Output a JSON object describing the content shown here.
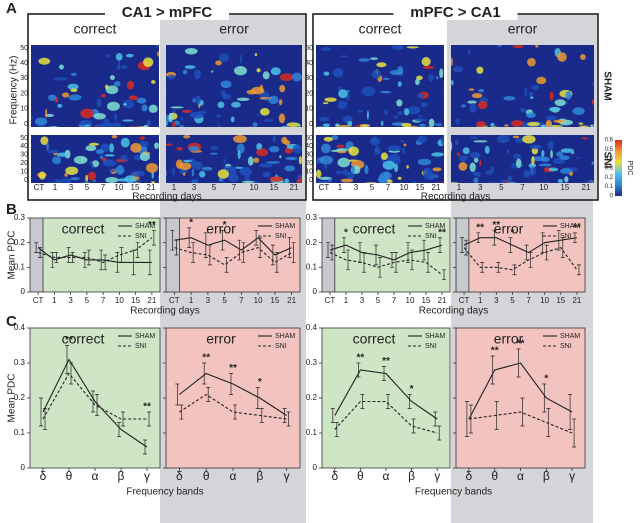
{
  "panels": {
    "a": "A",
    "b": "B",
    "c": "C"
  },
  "heatmaps": {
    "groups": [
      "CA1 > mPFC",
      "mPFC > CA1"
    ],
    "conditions": [
      "correct",
      "error"
    ],
    "rows": [
      "SHAM",
      "SNI"
    ],
    "ylabel": "Frequency (Hz)",
    "yticks": [
      0,
      10,
      20,
      30,
      40,
      50
    ],
    "xlabel": "Recording days",
    "xticks": [
      "CT",
      "1",
      "3",
      "5",
      "7",
      "10",
      "15",
      "21"
    ],
    "colorbar": {
      "label": "PDC",
      "ticks": [
        0,
        0.1,
        0.2,
        0.3,
        0.4,
        0.5,
        0.6
      ]
    }
  },
  "chart_data": [
    {
      "type": "line",
      "title": "correct",
      "ylabel": "Mean PDC",
      "xlabel": "Recording days",
      "background": "#cfe6c6",
      "categories": [
        "CT",
        "1",
        "3",
        "5",
        "7",
        "10",
        "15",
        "21"
      ],
      "ylim": [
        0,
        0.3
      ],
      "yticks": [
        0,
        0.1,
        0.2,
        0.3
      ],
      "series": [
        {
          "name": "SHAM",
          "color": "#222222",
          "dashed": false,
          "values": [
            0.18,
            0.13,
            0.15,
            0.13,
            0.13,
            0.12,
            0.12,
            0.12
          ],
          "errors": [
            0.02,
            0.03,
            0.03,
            0.03,
            0.04,
            0.04,
            0.05,
            0.05
          ]
        },
        {
          "name": "SNI",
          "color": "#222222",
          "dashed": true,
          "values": [
            0.16,
            0.14,
            0.14,
            0.14,
            0.12,
            0.15,
            0.17,
            0.22
          ],
          "errors": [
            0.02,
            0.02,
            0.02,
            0.03,
            0.03,
            0.03,
            0.03,
            0.03
          ]
        }
      ],
      "annotations": [
        {
          "x": "21",
          "text": "**"
        }
      ]
    },
    {
      "type": "line",
      "title": "error",
      "background": "#f2c3bf",
      "categories": [
        "CT",
        "1",
        "3",
        "5",
        "7",
        "10",
        "15",
        "21"
      ],
      "ylim": [
        0,
        0.3
      ],
      "yticks": [
        0,
        0.1,
        0.2,
        0.3
      ],
      "series": [
        {
          "name": "SHAM",
          "color": "#222222",
          "dashed": false,
          "values": [
            0.21,
            0.22,
            0.19,
            0.21,
            0.17,
            0.22,
            0.15,
            0.18
          ],
          "errors": [
            0.04,
            0.04,
            0.05,
            0.04,
            0.04,
            0.03,
            0.04,
            0.04
          ]
        },
        {
          "name": "SNI",
          "color": "#222222",
          "dashed": true,
          "values": [
            0.18,
            0.16,
            0.15,
            0.11,
            0.16,
            0.18,
            0.12,
            0.16
          ],
          "errors": [
            0.03,
            0.04,
            0.04,
            0.03,
            0.04,
            0.04,
            0.04,
            0.04
          ]
        }
      ],
      "annotations": [
        {
          "x": "1",
          "text": "*"
        },
        {
          "x": "5",
          "text": "*"
        }
      ]
    },
    {
      "type": "line",
      "title": "correct",
      "xlabel": "Recording days",
      "background": "#cfe6c6",
      "categories": [
        "CT",
        "1",
        "3",
        "5",
        "7",
        "10",
        "15",
        "21"
      ],
      "ylim": [
        0,
        0.3
      ],
      "yticks": [
        0,
        0.1,
        0.2,
        0.3
      ],
      "series": [
        {
          "name": "SHAM",
          "color": "#222222",
          "dashed": false,
          "values": [
            0.17,
            0.19,
            0.16,
            0.15,
            0.13,
            0.16,
            0.17,
            0.19
          ],
          "errors": [
            0.03,
            0.03,
            0.04,
            0.04,
            0.03,
            0.04,
            0.04,
            0.03
          ]
        },
        {
          "name": "SNI",
          "color": "#222222",
          "dashed": true,
          "values": [
            0.16,
            0.13,
            0.12,
            0.1,
            0.12,
            0.13,
            0.12,
            0.07
          ],
          "errors": [
            0.03,
            0.04,
            0.04,
            0.04,
            0.04,
            0.04,
            0.04,
            0.02
          ]
        }
      ],
      "annotations": [
        {
          "x": "1",
          "text": "*"
        },
        {
          "x": "21",
          "text": "**"
        }
      ]
    },
    {
      "type": "line",
      "title": "error",
      "background": "#f2c3bf",
      "categories": [
        "CT",
        "1",
        "3",
        "5",
        "7",
        "10",
        "15",
        "21"
      ],
      "ylim": [
        0,
        0.3
      ],
      "yticks": [
        0,
        0.1,
        0.2,
        0.3
      ],
      "series": [
        {
          "name": "SHAM",
          "color": "#222222",
          "dashed": false,
          "values": [
            0.19,
            0.22,
            0.22,
            0.19,
            0.16,
            0.2,
            0.21,
            0.22
          ],
          "errors": [
            0.03,
            0.02,
            0.03,
            0.03,
            0.03,
            0.04,
            0.04,
            0.02
          ]
        },
        {
          "name": "SNI",
          "color": "#222222",
          "dashed": true,
          "values": [
            0.18,
            0.1,
            0.1,
            0.09,
            0.13,
            0.16,
            0.18,
            0.09
          ],
          "errors": [
            0.03,
            0.02,
            0.02,
            0.02,
            0.03,
            0.03,
            0.04,
            0.02
          ]
        }
      ],
      "annotations": [
        {
          "x": "1",
          "text": "**"
        },
        {
          "x": "3",
          "text": "**"
        },
        {
          "x": "5",
          "text": "*"
        },
        {
          "x": "21",
          "text": "**"
        }
      ]
    },
    {
      "type": "line",
      "title": "correct",
      "ylabel": "Mean PDC",
      "xlabel": "Frequency bands",
      "background": "#cfe6c6",
      "categories": [
        "δ",
        "θ",
        "α",
        "β",
        "γ"
      ],
      "ylim": [
        0,
        0.4
      ],
      "yticks": [
        0,
        0.1,
        0.2,
        0.3,
        0.4
      ],
      "series": [
        {
          "name": "SHAM",
          "color": "#222222",
          "dashed": false,
          "values": [
            0.16,
            0.31,
            0.19,
            0.11,
            0.06
          ],
          "errors": [
            0.04,
            0.04,
            0.03,
            0.02,
            0.02
          ]
        },
        {
          "name": "SNI",
          "color": "#222222",
          "dashed": true,
          "values": [
            0.14,
            0.27,
            0.18,
            0.14,
            0.14
          ],
          "errors": [
            0.03,
            0.03,
            0.03,
            0.02,
            0.02
          ]
        }
      ],
      "annotations": [
        {
          "x": "θ",
          "text": "**"
        },
        {
          "x": "γ",
          "text": "**"
        }
      ]
    },
    {
      "type": "line",
      "title": "error",
      "background": "#f2c3bf",
      "categories": [
        "δ",
        "θ",
        "α",
        "β",
        "γ"
      ],
      "ylim": [
        0,
        0.4
      ],
      "yticks": [
        0,
        0.1,
        0.2,
        0.3,
        0.4
      ],
      "series": [
        {
          "name": "SHAM",
          "color": "#222222",
          "dashed": false,
          "values": [
            0.21,
            0.27,
            0.24,
            0.2,
            0.15
          ],
          "errors": [
            0.03,
            0.03,
            0.03,
            0.03,
            0.02
          ]
        },
        {
          "name": "SNI",
          "color": "#222222",
          "dashed": true,
          "values": [
            0.16,
            0.21,
            0.16,
            0.15,
            0.14
          ],
          "errors": [
            0.02,
            0.02,
            0.02,
            0.02,
            0.02
          ]
        }
      ],
      "annotations": [
        {
          "x": "θ",
          "text": "**"
        },
        {
          "x": "α",
          "text": "**"
        },
        {
          "x": "β",
          "text": "*"
        }
      ]
    },
    {
      "type": "line",
      "title": "correct",
      "xlabel": "Frequency bands",
      "background": "#cfe6c6",
      "categories": [
        "δ",
        "θ",
        "α",
        "β",
        "γ"
      ],
      "ylim": [
        0,
        0.4
      ],
      "yticks": [
        0,
        0.1,
        0.2,
        0.3,
        0.4
      ],
      "series": [
        {
          "name": "SHAM",
          "color": "#222222",
          "dashed": false,
          "values": [
            0.15,
            0.28,
            0.27,
            0.19,
            0.14
          ],
          "errors": [
            0.02,
            0.02,
            0.02,
            0.02,
            0.02
          ]
        },
        {
          "name": "SNI",
          "color": "#222222",
          "dashed": true,
          "values": [
            0.11,
            0.19,
            0.19,
            0.12,
            0.1
          ],
          "errors": [
            0.02,
            0.02,
            0.02,
            0.02,
            0.02
          ]
        }
      ],
      "annotations": [
        {
          "x": "θ",
          "text": "**"
        },
        {
          "x": "α",
          "text": "**"
        },
        {
          "x": "β",
          "text": "*"
        }
      ]
    },
    {
      "type": "line",
      "title": "error",
      "background": "#f2c3bf",
      "categories": [
        "δ",
        "θ",
        "α",
        "β",
        "γ"
      ],
      "ylim": [
        0,
        0.4
      ],
      "yticks": [
        0,
        0.1,
        0.2,
        0.3,
        0.4
      ],
      "series": [
        {
          "name": "SHAM",
          "color": "#222222",
          "dashed": false,
          "values": [
            0.14,
            0.28,
            0.3,
            0.2,
            0.16
          ],
          "errors": [
            0.05,
            0.04,
            0.04,
            0.04,
            0.05
          ]
        },
        {
          "name": "SNI",
          "color": "#222222",
          "dashed": true,
          "values": [
            0.14,
            0.15,
            0.16,
            0.13,
            0.1
          ],
          "errors": [
            0.04,
            0.04,
            0.04,
            0.04,
            0.04
          ]
        }
      ],
      "annotations": [
        {
          "x": "θ",
          "text": "**"
        },
        {
          "x": "α",
          "text": "**"
        },
        {
          "x": "β",
          "text": "*"
        }
      ]
    }
  ]
}
